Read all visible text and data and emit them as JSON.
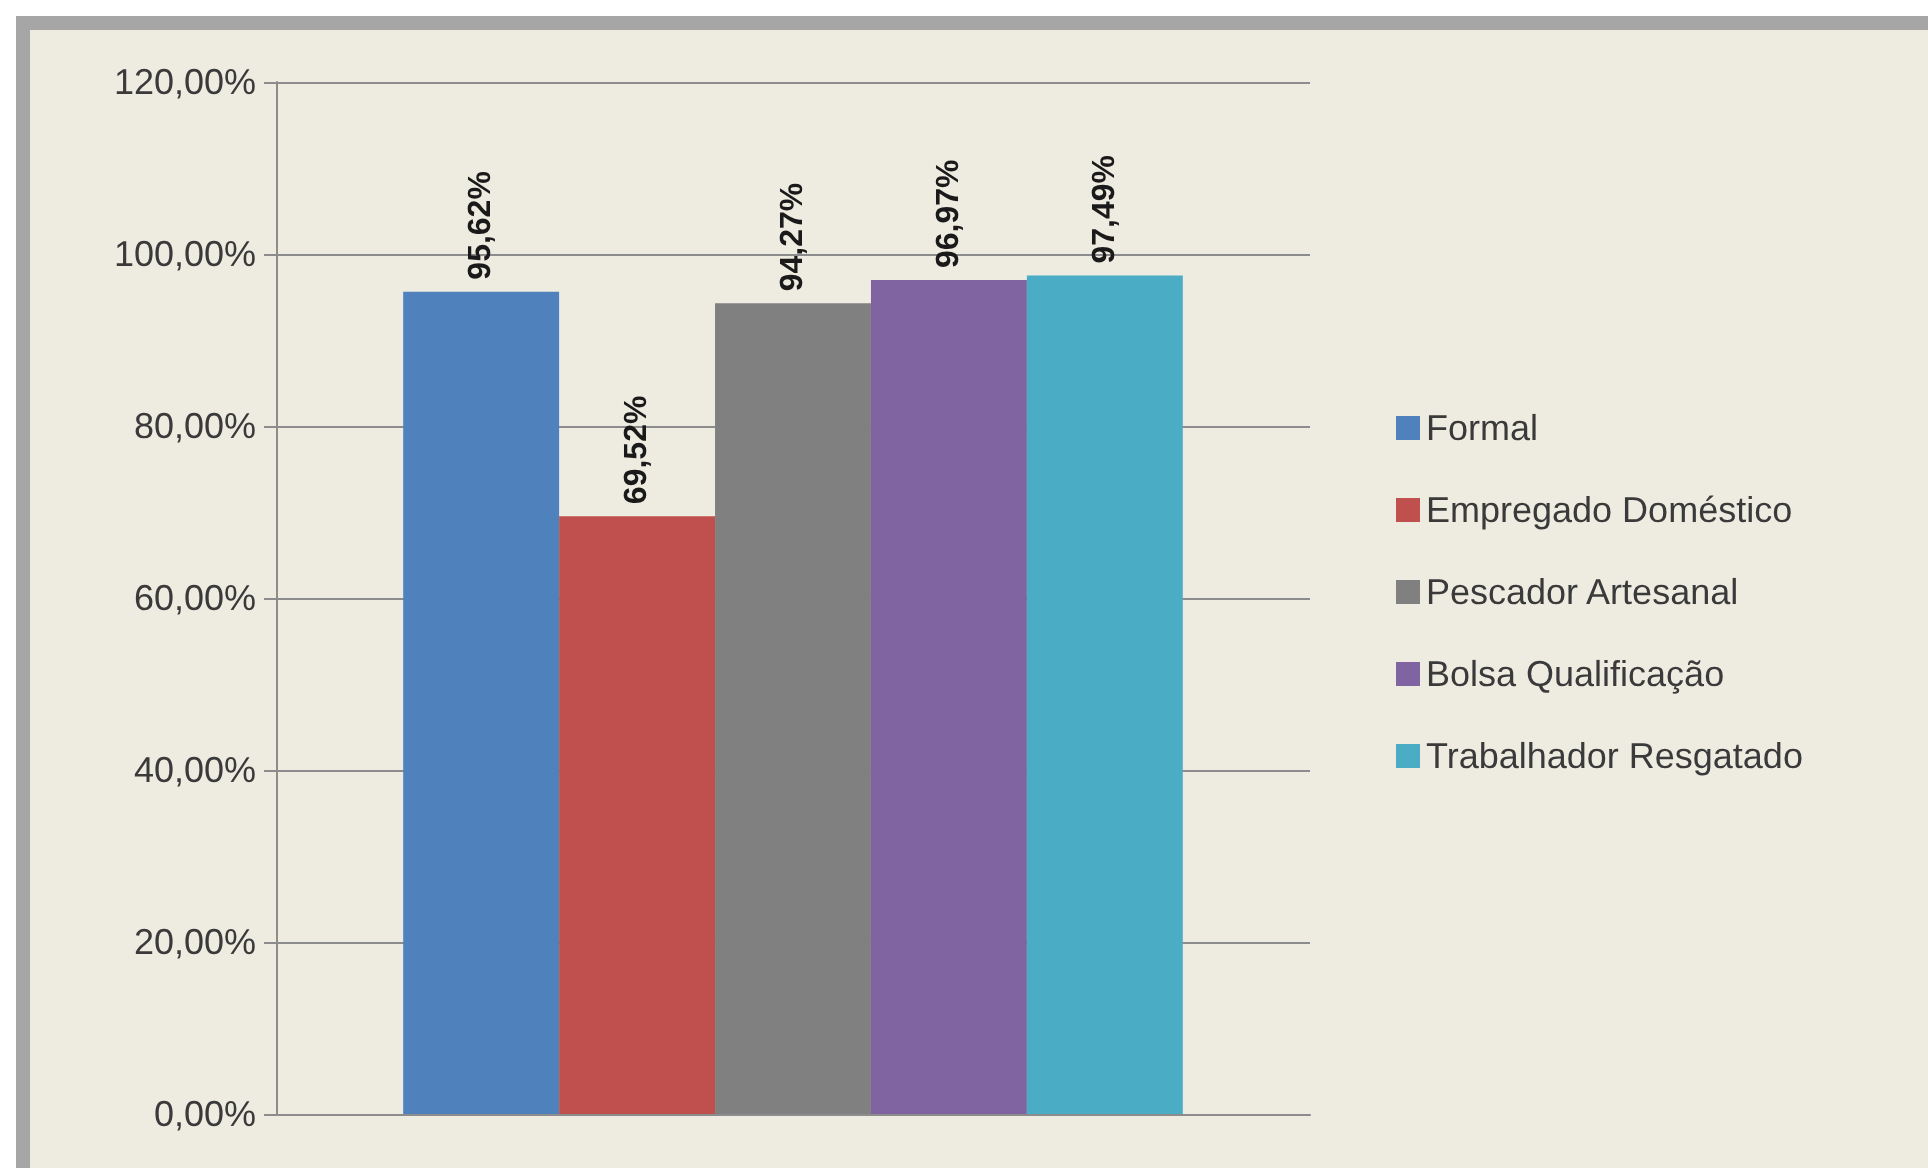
{
  "chart_data": {
    "type": "bar",
    "categories": [
      null
    ],
    "series": [
      {
        "name": "Formal",
        "color": "#4f81bd",
        "values": [
          95.62
        ],
        "value_labels": [
          "95,62%"
        ]
      },
      {
        "name": "Empregado Doméstico",
        "color": "#c0504d",
        "values": [
          69.52
        ],
        "value_labels": [
          "69,52%"
        ]
      },
      {
        "name": "Pescador Artesanal",
        "color": "#808080",
        "values": [
          94.27
        ],
        "value_labels": [
          "94,27%"
        ]
      },
      {
        "name": "Bolsa Qualificação",
        "color": "#8064a2",
        "values": [
          96.97
        ],
        "value_labels": [
          "96,97%"
        ]
      },
      {
        "name": "Trabalhador Resgatado",
        "color": "#4bacc6",
        "values": [
          97.49
        ],
        "value_labels": [
          "97,49%"
        ]
      }
    ],
    "ylim": [
      0,
      120
    ],
    "yticks": [
      {
        "value": 0,
        "label": "0,00%"
      },
      {
        "value": 20,
        "label": "20,00%"
      },
      {
        "value": 40,
        "label": "40,00%"
      },
      {
        "value": 60,
        "label": "60,00%"
      },
      {
        "value": 80,
        "label": "80,00%"
      },
      {
        "value": 100,
        "label": "100,00%"
      },
      {
        "value": 120,
        "label": "120,00%"
      }
    ],
    "grid": "y",
    "legend": "right"
  }
}
